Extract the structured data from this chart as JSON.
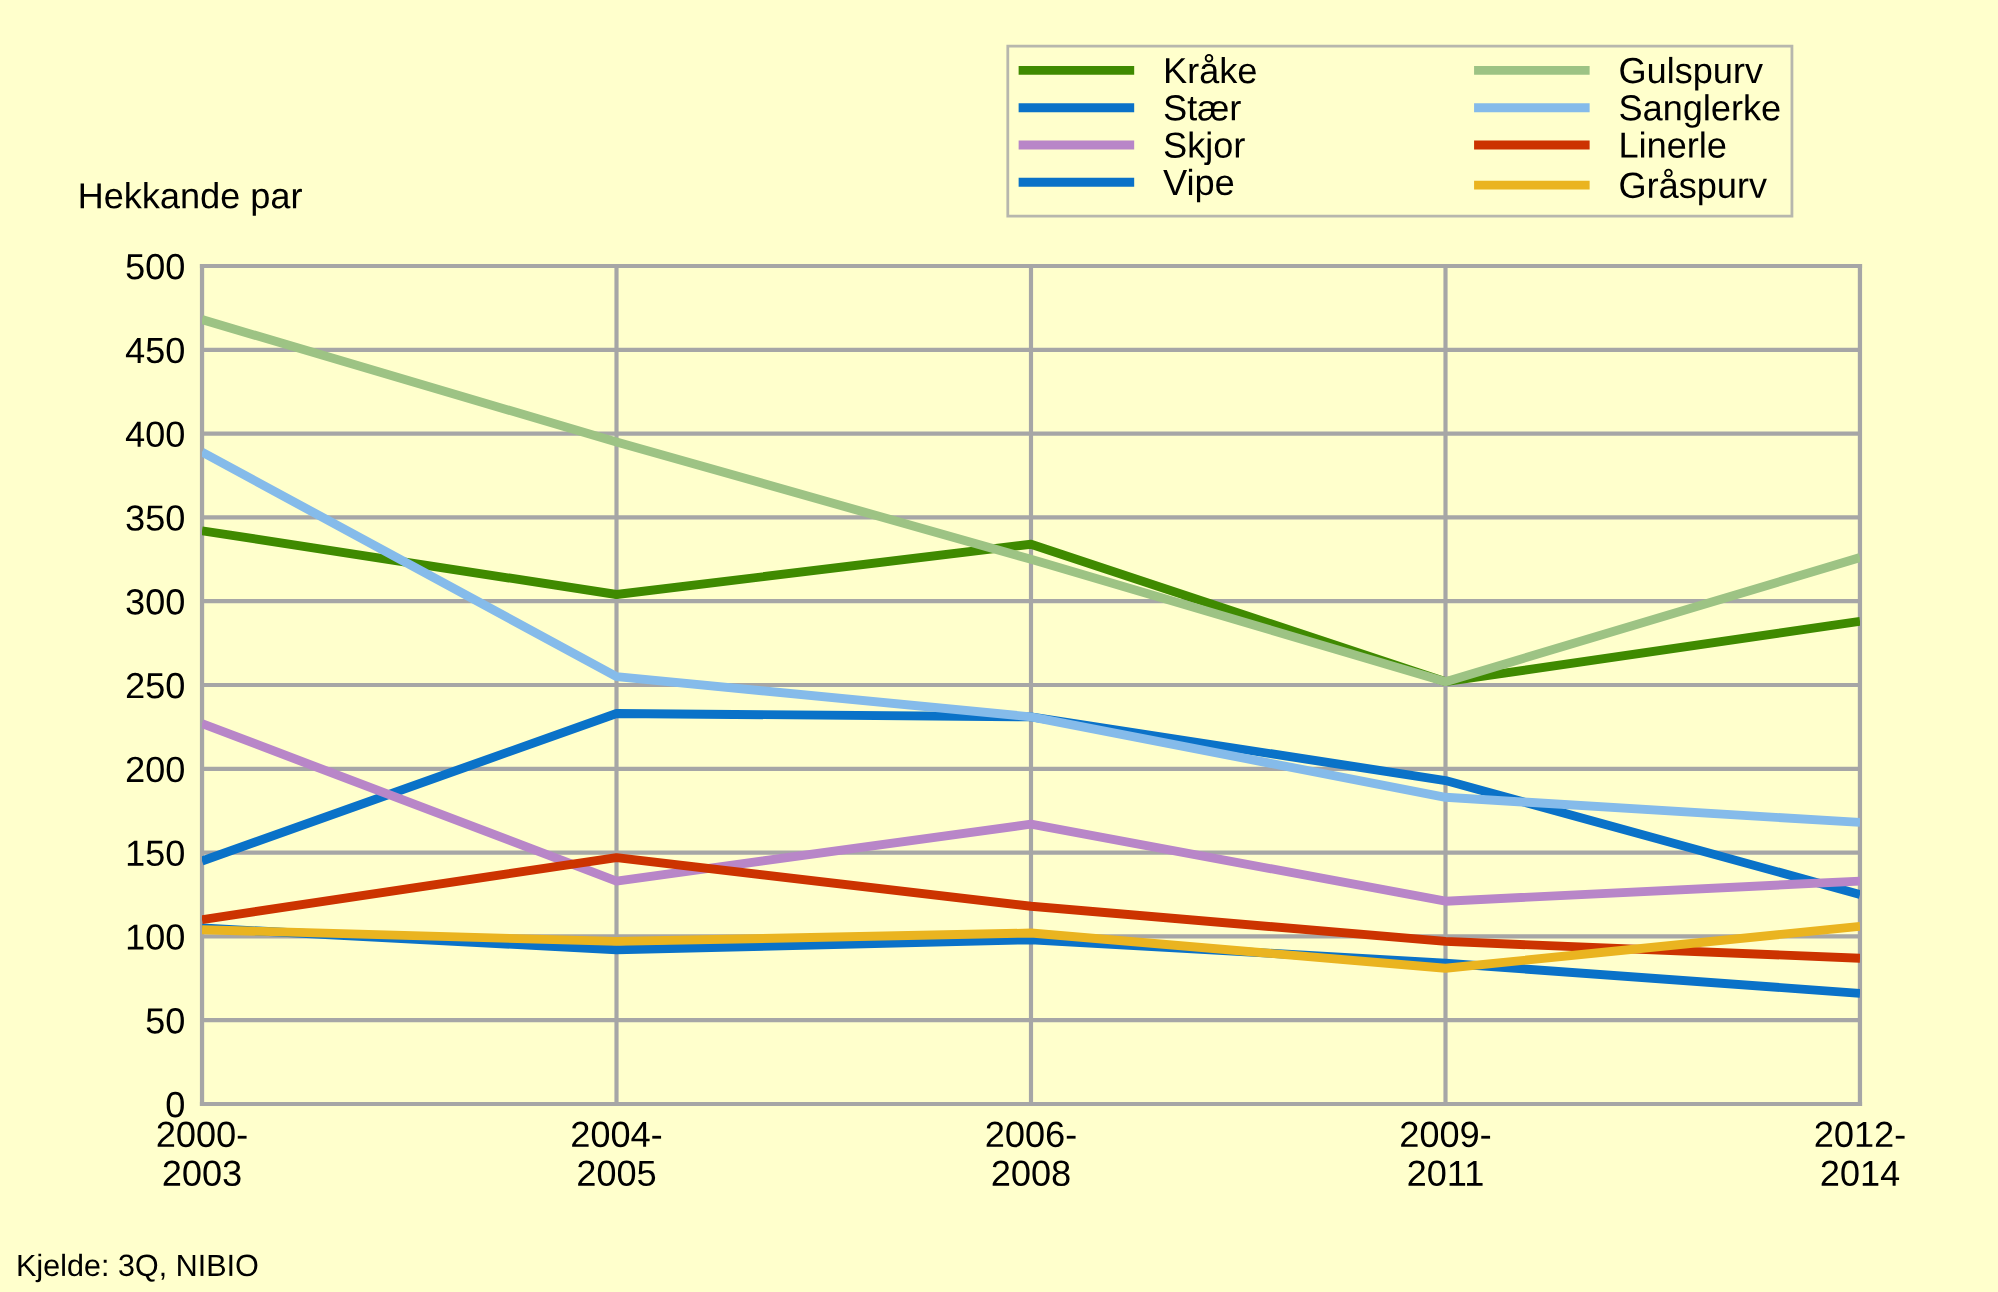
{
  "chart_data": {
    "type": "line",
    "ylabel": "Hekkande par",
    "categories": [
      "2000-\n2003",
      "2004-\n2005",
      "2006-\n2008",
      "2009-\n2011",
      "2012-\n2014"
    ],
    "series": [
      {
        "name": "Kråke",
        "color": "#3f8a00",
        "values": [
          342,
          304,
          334,
          252,
          288
        ]
      },
      {
        "name": "Stær",
        "color": "#0a72c8",
        "values": [
          145,
          233,
          231,
          193,
          125
        ]
      },
      {
        "name": "Skjor",
        "color": "#b886c8",
        "values": [
          227,
          133,
          167,
          121,
          133
        ]
      },
      {
        "name": "Vipe",
        "color": "#0a72c8",
        "values": [
          105,
          92,
          98,
          84,
          66
        ]
      },
      {
        "name": "Gulspurv",
        "color": "#9dc384",
        "values": [
          468,
          395,
          325,
          252,
          326
        ]
      },
      {
        "name": "Sanglerke",
        "color": "#85bbea",
        "values": [
          389,
          255,
          231,
          183,
          168
        ]
      },
      {
        "name": "Linerle",
        "color": "#cc3300",
        "values": [
          110,
          147,
          118,
          97,
          87
        ]
      },
      {
        "name": "Gråspurv",
        "color": "#eab420",
        "values": [
          104,
          97,
          102,
          81,
          106
        ]
      }
    ],
    "ylim": [
      0,
      500
    ],
    "yticks": [
      0,
      50,
      100,
      150,
      200,
      250,
      300,
      350,
      400,
      450,
      500
    ],
    "grid": true,
    "legend": "top right",
    "marker": "none",
    "line_style": "solid",
    "annotations": [
      "Kjelde: 3Q, NIBIO"
    ]
  }
}
